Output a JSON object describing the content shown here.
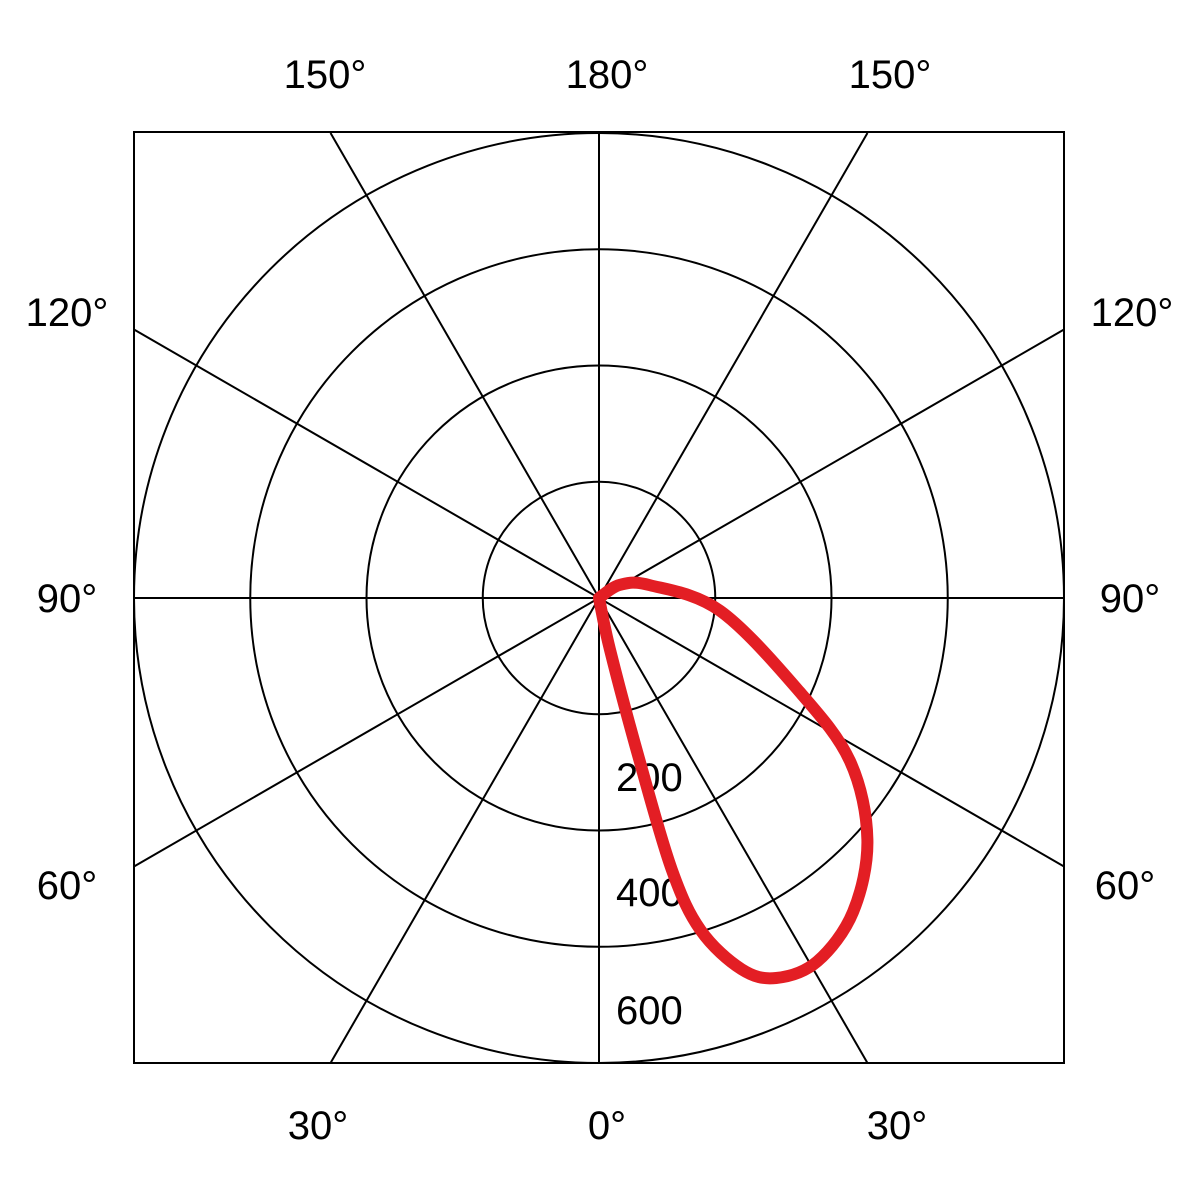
{
  "chart_data": {
    "type": "polar-line",
    "title": "",
    "angle_unit": "degrees",
    "angle_zero": "bottom",
    "angle_tick_labels": {
      "top": [
        "150°",
        "180°",
        "150°"
      ],
      "left": [
        "120°",
        "90°",
        "60°"
      ],
      "right": [
        "120°",
        "90°",
        "60°"
      ],
      "bottom": [
        "30°",
        "0°",
        "30°"
      ]
    },
    "radial_tick_labels": [
      "200",
      "400",
      "600"
    ],
    "radial_max": 600,
    "rings": [
      150,
      300,
      450,
      600
    ],
    "spokes_every_deg": 30,
    "grid": true,
    "series": [
      {
        "color": "#e31e24",
        "side": "right",
        "points": [
          {
            "angle": 0,
            "value": 0
          },
          {
            "angle": 12,
            "value": 68
          },
          {
            "angle": 14,
            "value": 216
          },
          {
            "angle": 15,
            "value": 363
          },
          {
            "angle": 17,
            "value": 448
          },
          {
            "angle": 21,
            "value": 513
          },
          {
            "angle": 25,
            "value": 541
          },
          {
            "angle": 31,
            "value": 547
          },
          {
            "angle": 39,
            "value": 521
          },
          {
            "angle": 48,
            "value": 466
          },
          {
            "angle": 57,
            "value": 386
          },
          {
            "angle": 65,
            "value": 285
          },
          {
            "angle": 84,
            "value": 157
          },
          {
            "angle": 104,
            "value": 68
          },
          {
            "angle": 122,
            "value": 32
          },
          {
            "angle": 180,
            "value": 0
          }
        ]
      }
    ]
  }
}
